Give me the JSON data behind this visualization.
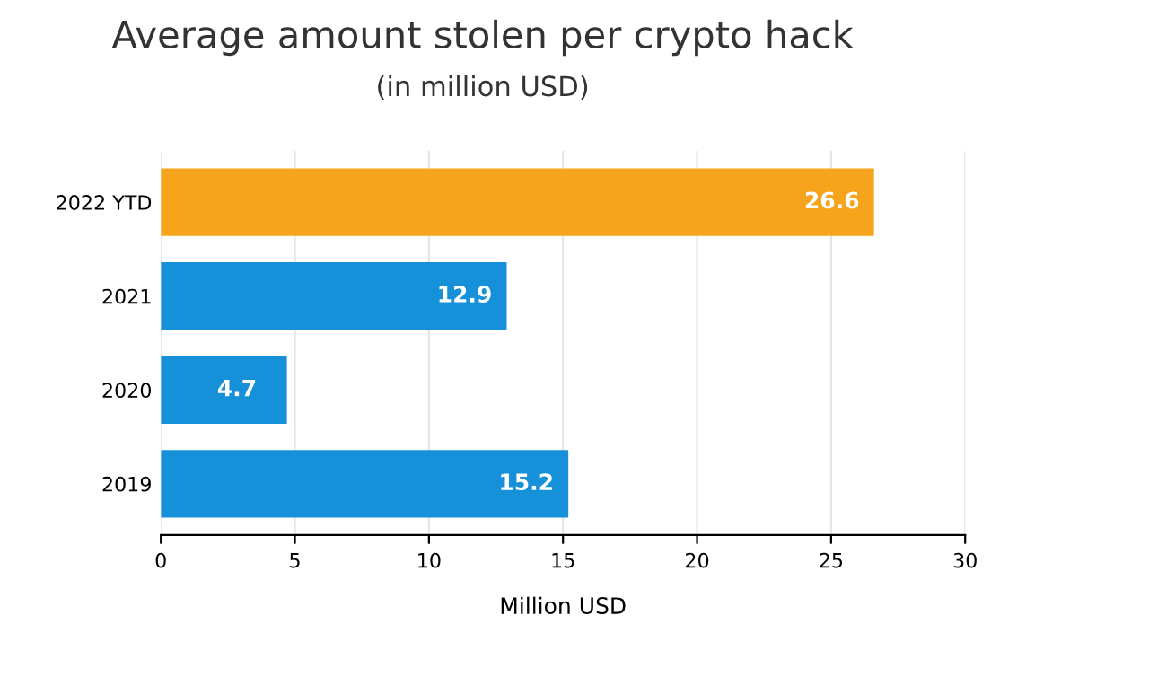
{
  "chart_data": {
    "type": "bar",
    "orientation": "horizontal",
    "title": "Average amount stolen per crypto hack",
    "subtitle": "(in million USD)",
    "xlabel": "Million USD",
    "categories": [
      "2022 YTD",
      "2021",
      "2020",
      "2019"
    ],
    "values": [
      26.6,
      12.9,
      4.7,
      15.2
    ],
    "colors": [
      "#f7a41d",
      "#1690d8",
      "#1690d8",
      "#1690d8"
    ],
    "xlim": [
      0,
      30
    ],
    "xticks": [
      0,
      5,
      10,
      15,
      20,
      25,
      30
    ],
    "grid": "x",
    "data_labels": true
  }
}
